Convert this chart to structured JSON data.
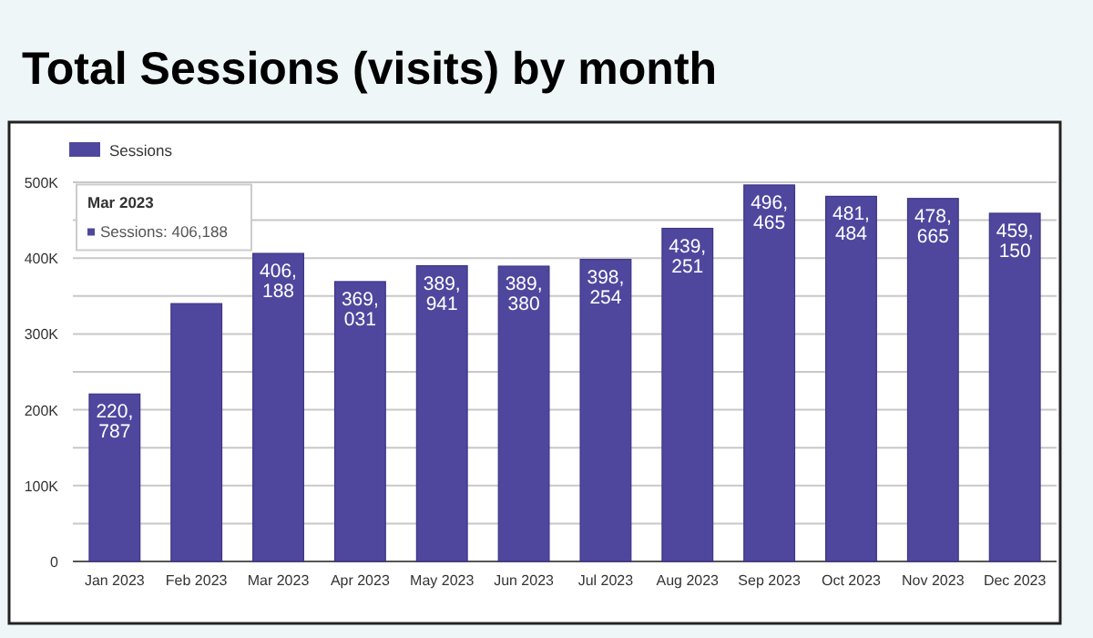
{
  "chart_data": {
    "type": "bar",
    "title": "Total Sessions (visits) by month",
    "categories": [
      "Jan 2023",
      "Feb 2023",
      "Mar 2023",
      "Apr 2023",
      "May 2023",
      "Jun 2023",
      "Jul 2023",
      "Aug 2023",
      "Sep 2023",
      "Oct 2023",
      "Nov 2023",
      "Dec 2023"
    ],
    "series": [
      {
        "name": "Sessions",
        "color": "#4f479e",
        "values": [
          220787,
          340000,
          406188,
          369031,
          389941,
          389380,
          398254,
          439251,
          496465,
          481484,
          478665,
          459150
        ],
        "value_labels": [
          "220,787",
          null,
          "406,188",
          "369,031",
          "389,941",
          "389,380",
          "398,254",
          "439,251",
          "496,465",
          "481,484",
          "478,665",
          "459,150"
        ]
      }
    ],
    "ylim": [
      0,
      500000
    ],
    "yticks": [
      0,
      {
        "value": 50000,
        "label": null
      },
      {
        "value": 100000,
        "label": "100K"
      },
      {
        "value": 150000,
        "label": null
      },
      {
        "value": 200000,
        "label": "200K"
      },
      {
        "value": 250000,
        "label": null
      },
      {
        "value": 300000,
        "label": "300K"
      },
      {
        "value": 350000,
        "label": null
      },
      {
        "value": 400000,
        "label": "400K"
      },
      {
        "value": 450000,
        "label": null
      },
      {
        "value": 500000,
        "label": "500K"
      }
    ],
    "grid": "y",
    "legend": "top left",
    "annotations": [
      "Mar 2023",
      "Sessions: 406,188"
    ]
  }
}
